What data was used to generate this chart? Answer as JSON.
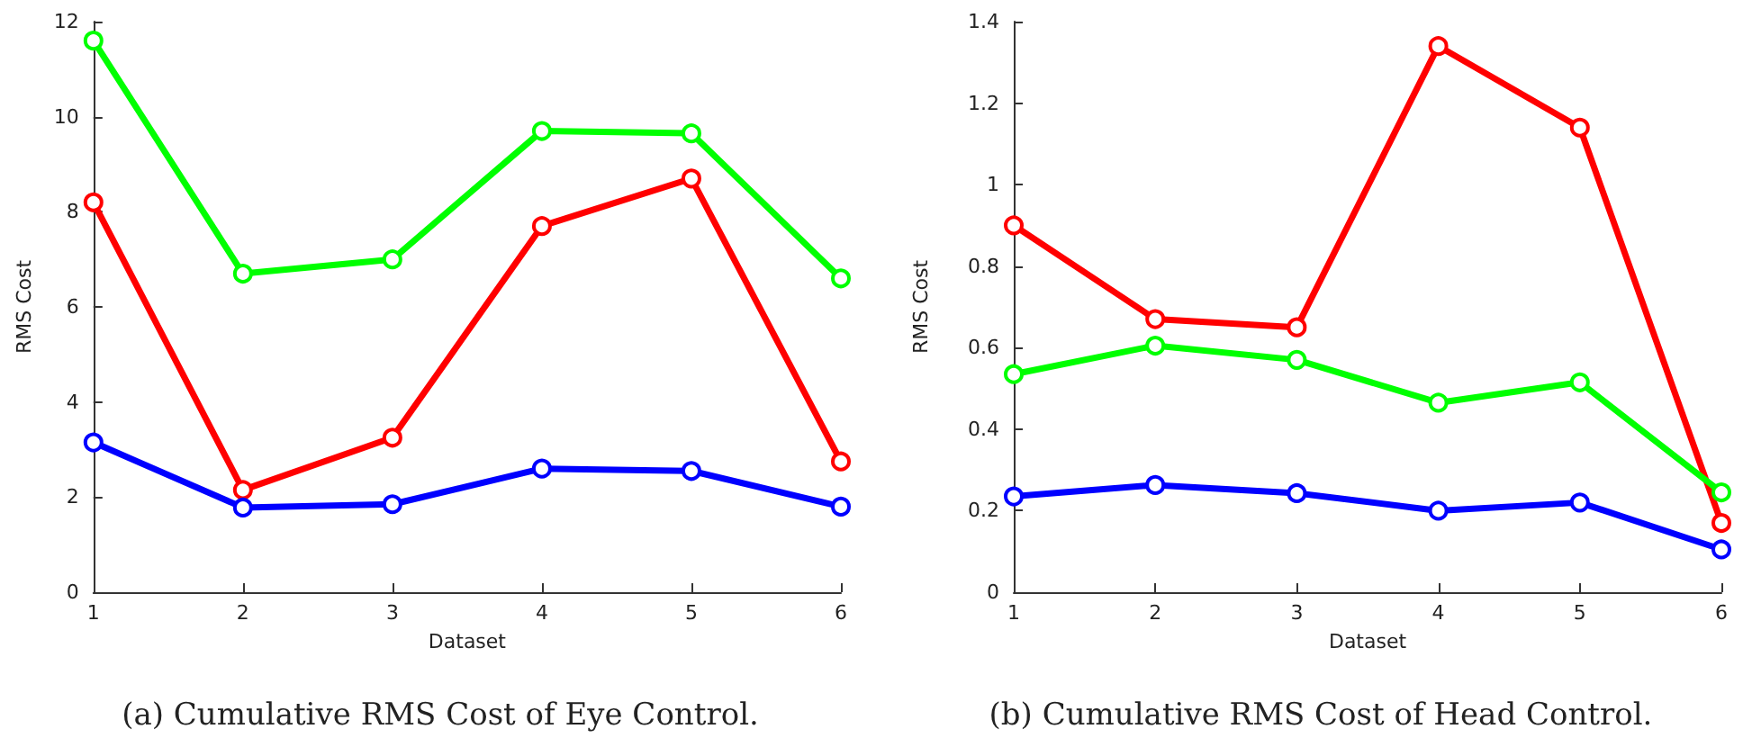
{
  "chart_data": [
    {
      "type": "line",
      "title": "(a) Cumulative RMS Cost of Eye Control.",
      "xlabel": "Dataset",
      "ylabel": "RMS Cost",
      "x": [
        1,
        2,
        3,
        4,
        5,
        6
      ],
      "xlim": [
        1,
        6
      ],
      "xticks": [
        1,
        2,
        3,
        4,
        5,
        6
      ],
      "ylim": [
        0,
        12
      ],
      "yticks": [
        0,
        2,
        4,
        6,
        8,
        10,
        12
      ],
      "grid": false,
      "marker": "circle",
      "line_style": "solid",
      "series": [
        {
          "color": "#00ff00",
          "values": [
            11.6,
            6.7,
            7.0,
            9.7,
            9.65,
            6.6
          ]
        },
        {
          "color": "#ff0000",
          "values": [
            8.2,
            2.15,
            3.25,
            7.7,
            8.7,
            2.75
          ]
        },
        {
          "color": "#0000ff",
          "values": [
            3.15,
            1.78,
            1.85,
            2.6,
            2.55,
            1.8
          ]
        }
      ]
    },
    {
      "type": "line",
      "title": "(b) Cumulative RMS Cost of Head Control.",
      "xlabel": "Dataset",
      "ylabel": "RMS Cost",
      "x": [
        1,
        2,
        3,
        4,
        5,
        6
      ],
      "xlim": [
        1,
        6
      ],
      "xticks": [
        1,
        2,
        3,
        4,
        5,
        6
      ],
      "ylim": [
        0,
        1.4
      ],
      "yticks": [
        0,
        0.2,
        0.4,
        0.6,
        0.8,
        1,
        1.2,
        1.4
      ],
      "grid": false,
      "marker": "circle",
      "line_style": "solid",
      "series": [
        {
          "color": "#ff0000",
          "values": [
            0.9,
            0.67,
            0.65,
            1.34,
            1.14,
            0.17
          ]
        },
        {
          "color": "#00ff00",
          "values": [
            0.535,
            0.605,
            0.57,
            0.465,
            0.515,
            0.245
          ]
        },
        {
          "color": "#0000ff",
          "values": [
            0.235,
            0.263,
            0.243,
            0.2,
            0.22,
            0.105
          ]
        }
      ]
    }
  ]
}
